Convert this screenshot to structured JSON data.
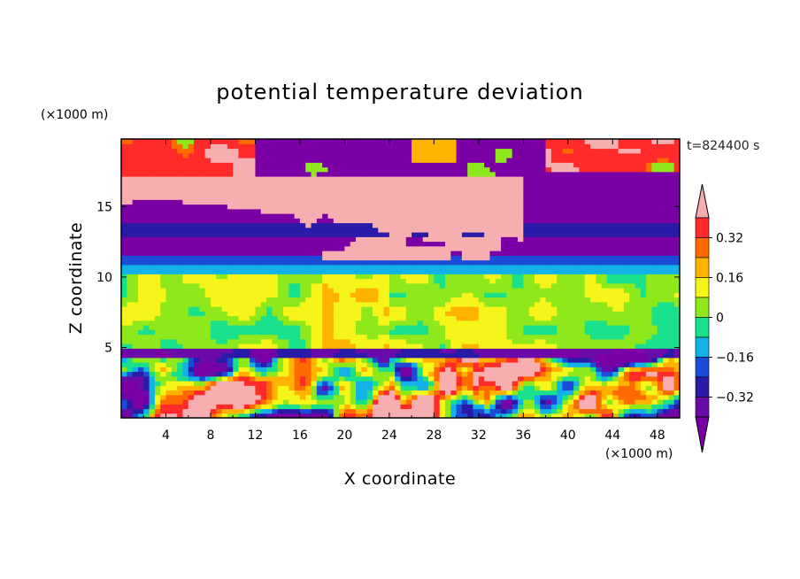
{
  "chart_data": {
    "type": "heatmap",
    "title": "potential temperature deviation",
    "time_label": "t=824400 s",
    "xlabel": "X coordinate",
    "ylabel": "Z coordinate",
    "x_unit": "(×1000 m)",
    "y_unit": "(×1000 m)",
    "xlim": [
      0,
      50
    ],
    "ylim": [
      0,
      19.8
    ],
    "x_ticks": [
      "4",
      "8",
      "12",
      "16",
      "20",
      "24",
      "28",
      "32",
      "36",
      "40",
      "44",
      "48"
    ],
    "y_ticks": [
      "5",
      "10",
      "15"
    ],
    "colorbar": {
      "levels": [
        -0.4,
        -0.32,
        -0.24,
        -0.16,
        -0.08,
        0,
        0.08,
        0.16,
        0.24,
        0.32,
        0.4
      ],
      "colors": [
        "#6a0aa8",
        "#2a1aa8",
        "#1a4cd8",
        "#12b2e6",
        "#19e08a",
        "#8ee81c",
        "#f5f51a",
        "#ffb200",
        "#ff6a00",
        "#ff2a2a"
      ],
      "under_color": "#7a00a6",
      "over_color": "#f7aeb0",
      "tick_labels": [
        "0.32",
        "0.16",
        "0",
        "−0.16",
        "−0.32"
      ],
      "tick_values": [
        0.32,
        0.16,
        0,
        -0.16,
        -0.32
      ]
    },
    "layers": [
      {
        "z_range": [
          17.5,
          19.8
        ],
        "value": "below -0.4",
        "color": "#7a00a6"
      },
      {
        "z_range": [
          14.0,
          17.5
        ],
        "value": "mixed: above 0.4 cloud / below -0.4",
        "color": "#f7aeb0"
      },
      {
        "z_range": [
          13.0,
          14.0
        ],
        "value": "-0.32 to -0.24",
        "color": "#2a1aa8"
      },
      {
        "z_range": [
          11.5,
          13.0
        ],
        "value": "below -0.4",
        "color": "#7a00a6"
      },
      {
        "z_range": [
          10.5,
          11.5
        ],
        "value": "-0.16 to -0.08",
        "color": "#12b2e6"
      },
      {
        "z_range": [
          5.0,
          10.5
        ],
        "value": "0 to 0.16",
        "color": "#8ee81c"
      },
      {
        "z_range": [
          0.0,
          5.0
        ],
        "value": "mixed -0.4 to 0.4",
        "color": "#1a4cd8"
      }
    ]
  }
}
